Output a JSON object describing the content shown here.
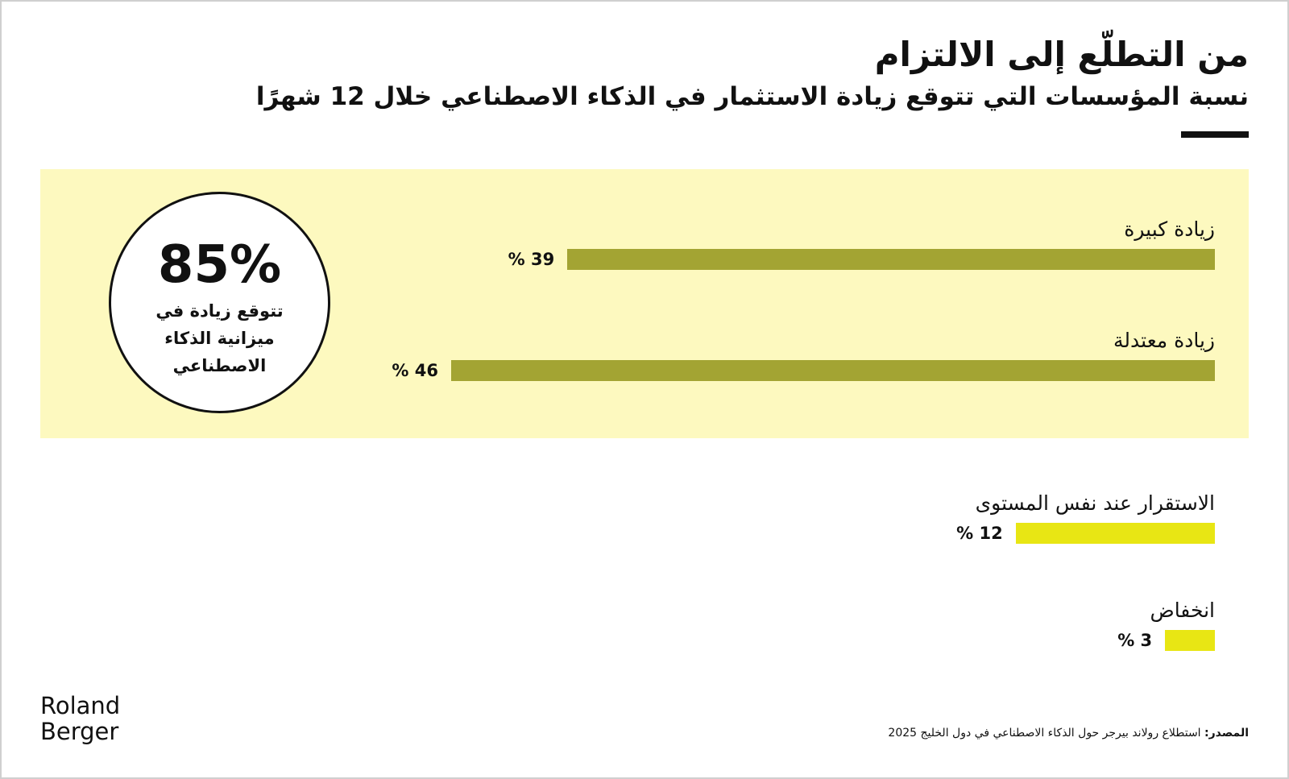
{
  "header": {
    "title": "من التطلّع إلى الالتزام",
    "subtitle": "نسبة المؤسسات التي تتوقع زيادة الاستثمار في الذكاء الاصطناعي خلال 12 شهرًا"
  },
  "highlight": {
    "value": "85%",
    "caption": "تتوقع زيادة في ميزانية الذكاء الاصطناعي"
  },
  "chart_data": {
    "type": "bar",
    "orientation": "horizontal",
    "title": "",
    "xlabel": "",
    "ylabel": "",
    "xlim": [
      0,
      50
    ],
    "grid": false,
    "legend": "none",
    "unit": "%",
    "categories": [
      "زيادة كبيرة",
      "زيادة معتدلة",
      "الاستقرار عند نفس المستوى",
      "انخفاض"
    ],
    "values": [
      39,
      46,
      12,
      3
    ],
    "value_labels": [
      "% 39",
      "% 46",
      "% 12",
      "% 3"
    ],
    "colors": [
      "#a3a433",
      "#a3a433",
      "#e8e614",
      "#e8e614"
    ]
  },
  "colors": {
    "panel": "#fdf9bf",
    "bar_dark": "#a3a433",
    "bar_light": "#e8e614",
    "text": "#111111"
  },
  "footer": {
    "logo_line1": "Roland",
    "logo_line2": "Berger",
    "source_label": "المصدر:",
    "source_text": " استطلاع رولاند بيرجر حول الذكاء الاصطناعي في دول الخليج 2025"
  }
}
